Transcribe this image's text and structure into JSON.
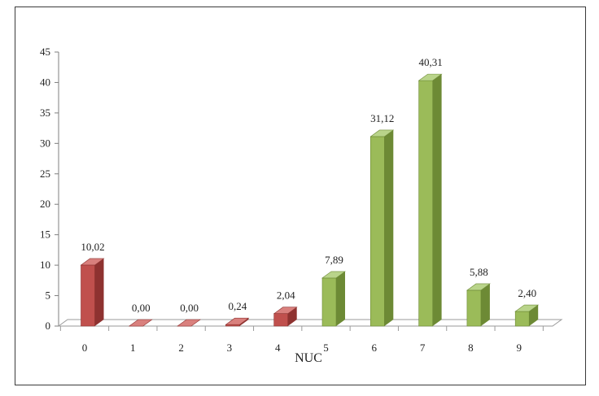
{
  "chart_data": {
    "type": "bar",
    "categories": [
      "0",
      "1",
      "2",
      "3",
      "4",
      "5",
      "6",
      "7",
      "8",
      "9"
    ],
    "values": [
      10.02,
      0.0,
      0.0,
      0.24,
      2.04,
      7.89,
      31.12,
      40.31,
      5.88,
      2.4
    ],
    "data_labels": [
      "10,02",
      "0,00",
      "0,00",
      "0,24",
      "2,04",
      "7,89",
      "31,12",
      "40,31",
      "5,88",
      "2,40"
    ],
    "yticks": [
      "0",
      "5",
      "10",
      "15",
      "20",
      "25",
      "30",
      "35",
      "40",
      "45"
    ],
    "title": "",
    "xlabel": "NUC",
    "ylabel": "",
    "ylim": [
      0,
      45
    ],
    "grid": false,
    "style": "3d",
    "colors": {
      "red_group": "#c0504d",
      "green_group": "#9bbb59"
    },
    "bar_groups": [
      "red",
      "red",
      "red",
      "red",
      "red",
      "green",
      "green",
      "green",
      "green",
      "green"
    ]
  }
}
